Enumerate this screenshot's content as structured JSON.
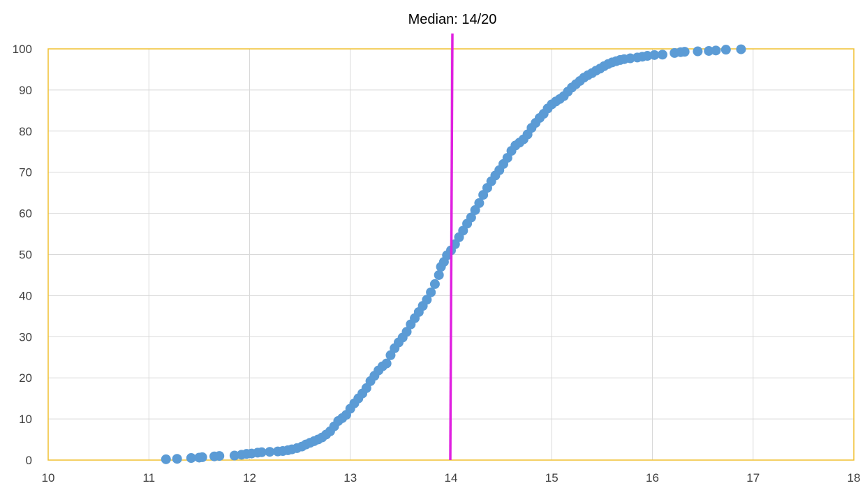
{
  "chart_data": {
    "type": "scatter",
    "xlim": [
      10,
      18
    ],
    "ylim": [
      0,
      100
    ],
    "x_ticks": [
      10,
      11,
      12,
      13,
      14,
      15,
      16,
      17,
      18
    ],
    "y_ticks": [
      0,
      10,
      20,
      30,
      40,
      50,
      60,
      70,
      80,
      90,
      100
    ],
    "grid": true,
    "legend": "none",
    "annotations": [
      {
        "text": "Median: 14/20",
        "x": 14,
        "type": "vertical-line"
      }
    ],
    "colors": {
      "points": "#5B9BD5",
      "median_line": "#E020E0",
      "plot_border": "#F0C030",
      "grid": "#D9D9D9"
    },
    "series": [
      {
        "points": [
          [
            11.17,
            0.2
          ],
          [
            11.28,
            0.3
          ],
          [
            11.42,
            0.5
          ],
          [
            11.5,
            0.6
          ],
          [
            11.53,
            0.7
          ],
          [
            11.65,
            0.9
          ],
          [
            11.7,
            1.0
          ],
          [
            11.85,
            1.1
          ],
          [
            11.92,
            1.3
          ],
          [
            11.97,
            1.5
          ],
          [
            12.02,
            1.6
          ],
          [
            12.08,
            1.8
          ],
          [
            12.12,
            1.9
          ],
          [
            12.2,
            2.0
          ],
          [
            12.28,
            2.1
          ],
          [
            12.33,
            2.2
          ],
          [
            12.38,
            2.4
          ],
          [
            12.42,
            2.6
          ],
          [
            12.47,
            2.9
          ],
          [
            12.52,
            3.3
          ],
          [
            12.56,
            3.8
          ],
          [
            12.6,
            4.2
          ],
          [
            12.64,
            4.6
          ],
          [
            12.68,
            5.0
          ],
          [
            12.72,
            5.5
          ],
          [
            12.76,
            6.2
          ],
          [
            12.8,
            7.0
          ],
          [
            12.84,
            8.2
          ],
          [
            12.88,
            9.5
          ],
          [
            12.92,
            10.2
          ],
          [
            12.96,
            11.0
          ],
          [
            13.0,
            12.5
          ],
          [
            13.04,
            13.8
          ],
          [
            13.08,
            15.0
          ],
          [
            13.12,
            16.2
          ],
          [
            13.16,
            17.5
          ],
          [
            13.2,
            19.2
          ],
          [
            13.24,
            20.5
          ],
          [
            13.28,
            21.8
          ],
          [
            13.32,
            22.8
          ],
          [
            13.36,
            23.5
          ],
          [
            13.4,
            25.5
          ],
          [
            13.44,
            27.2
          ],
          [
            13.48,
            28.6
          ],
          [
            13.52,
            29.8
          ],
          [
            13.56,
            31.2
          ],
          [
            13.6,
            33.0
          ],
          [
            13.64,
            34.5
          ],
          [
            13.68,
            36.0
          ],
          [
            13.72,
            37.5
          ],
          [
            13.76,
            39.0
          ],
          [
            13.8,
            40.8
          ],
          [
            13.84,
            42.8
          ],
          [
            13.88,
            45.0
          ],
          [
            13.9,
            47.0
          ],
          [
            13.93,
            48.2
          ],
          [
            13.96,
            49.8
          ],
          [
            14.0,
            51.0
          ],
          [
            14.04,
            52.5
          ],
          [
            14.08,
            54.2
          ],
          [
            14.12,
            55.8
          ],
          [
            14.16,
            57.5
          ],
          [
            14.2,
            59.0
          ],
          [
            14.24,
            60.8
          ],
          [
            14.28,
            62.5
          ],
          [
            14.32,
            64.5
          ],
          [
            14.36,
            66.2
          ],
          [
            14.4,
            67.8
          ],
          [
            14.44,
            69.2
          ],
          [
            14.48,
            70.5
          ],
          [
            14.52,
            72.0
          ],
          [
            14.56,
            73.5
          ],
          [
            14.6,
            75.2
          ],
          [
            14.64,
            76.5
          ],
          [
            14.68,
            77.2
          ],
          [
            14.72,
            78.0
          ],
          [
            14.76,
            79.2
          ],
          [
            14.8,
            80.8
          ],
          [
            14.84,
            82.0
          ],
          [
            14.88,
            83.2
          ],
          [
            14.92,
            84.2
          ],
          [
            14.96,
            85.5
          ],
          [
            15.0,
            86.5
          ],
          [
            15.04,
            87.2
          ],
          [
            15.08,
            87.8
          ],
          [
            15.12,
            88.5
          ],
          [
            15.16,
            89.6
          ],
          [
            15.2,
            90.6
          ],
          [
            15.24,
            91.4
          ],
          [
            15.28,
            92.2
          ],
          [
            15.32,
            93.0
          ],
          [
            15.36,
            93.6
          ],
          [
            15.4,
            94.1
          ],
          [
            15.44,
            94.7
          ],
          [
            15.48,
            95.2
          ],
          [
            15.52,
            95.8
          ],
          [
            15.56,
            96.3
          ],
          [
            15.6,
            96.7
          ],
          [
            15.64,
            97.0
          ],
          [
            15.68,
            97.3
          ],
          [
            15.72,
            97.5
          ],
          [
            15.78,
            97.7
          ],
          [
            15.85,
            97.9
          ],
          [
            15.9,
            98.1
          ],
          [
            15.95,
            98.3
          ],
          [
            16.02,
            98.5
          ],
          [
            16.1,
            98.6
          ],
          [
            16.22,
            99.0
          ],
          [
            16.28,
            99.2
          ],
          [
            16.32,
            99.3
          ],
          [
            16.45,
            99.4
          ],
          [
            16.56,
            99.5
          ],
          [
            16.63,
            99.6
          ],
          [
            16.73,
            99.8
          ],
          [
            16.88,
            99.9
          ]
        ]
      }
    ]
  }
}
